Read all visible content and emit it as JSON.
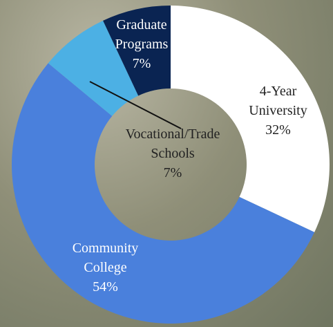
{
  "chart_data": {
    "type": "donut",
    "categories": [
      "4-Year University",
      "Community College",
      "Vocational/Trade Schools",
      "Graduate Programs"
    ],
    "values": [
      32,
      54,
      7,
      7
    ],
    "value_labels": [
      "32%",
      "54%",
      "7%",
      "7%"
    ],
    "colors": [
      "#ffffff",
      "#4a80dc",
      "#4cb0e4",
      "#0a2452"
    ]
  }
}
